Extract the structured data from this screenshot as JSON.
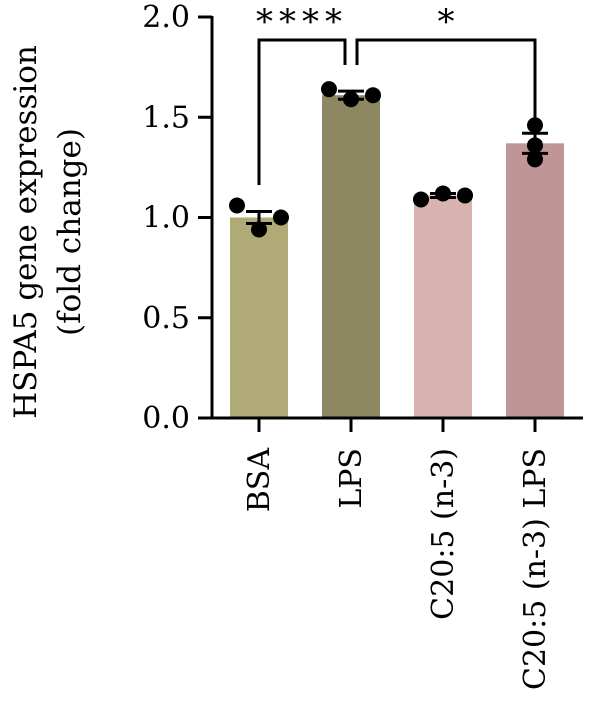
{
  "chart_data": {
    "type": "bar",
    "title": "",
    "ylabel_lines": [
      "HSPA5 gene expression",
      "(fold change)"
    ],
    "xlabel": "",
    "ylim": [
      0,
      2.0
    ],
    "yticks": [
      0.0,
      0.5,
      1.0,
      1.5,
      2.0
    ],
    "ytick_labels": [
      "0.0",
      "0.5",
      "1.0",
      "1.5",
      "2.0"
    ],
    "categories": [
      "BSA",
      "LPS",
      "C20:5 (n-3)",
      "C20:5 (n-3) LPS"
    ],
    "values": [
      1.0,
      1.61,
      1.11,
      1.37
    ],
    "error_sem": [
      0.03,
      0.02,
      0.01,
      0.05
    ],
    "points": [
      [
        1.06,
        0.94,
        1.0
      ],
      [
        1.64,
        1.59,
        1.61
      ],
      [
        1.09,
        1.12,
        1.11
      ],
      [
        1.46,
        1.29,
        1.36
      ]
    ],
    "bar_colors": [
      "#b0aa76",
      "#8d8762",
      "#d8b3af",
      "#bf9595"
    ],
    "point_color": "#000000",
    "grid": false,
    "significance": [
      {
        "from": 0,
        "to": 1,
        "label": "****"
      },
      {
        "from": 1,
        "to": 3,
        "label": "*"
      }
    ]
  }
}
